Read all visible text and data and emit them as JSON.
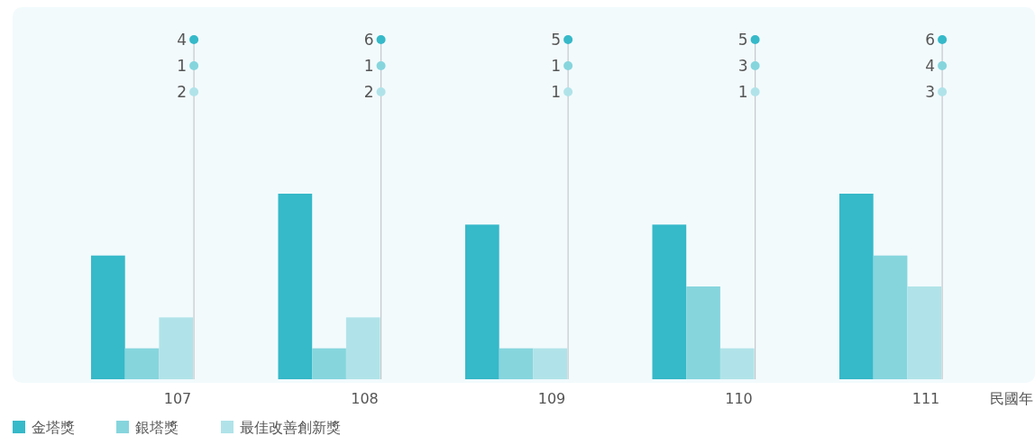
{
  "chart_data": {
    "type": "bar",
    "xlabel": "民國年",
    "categories": [
      "107",
      "108",
      "109",
      "110",
      "111"
    ],
    "series": [
      {
        "name": "金塔獎",
        "color": "#36b9c9",
        "values": [
          4,
          6,
          5,
          5,
          6
        ]
      },
      {
        "name": "銀塔獎",
        "color": "#86d5dd",
        "values": [
          1,
          1,
          1,
          3,
          4
        ]
      },
      {
        "name": "最佳改善創新獎",
        "color": "#b0e3e9",
        "values": [
          2,
          2,
          1,
          1,
          3
        ]
      }
    ],
    "data_labels": true,
    "legend": "bottom left"
  }
}
